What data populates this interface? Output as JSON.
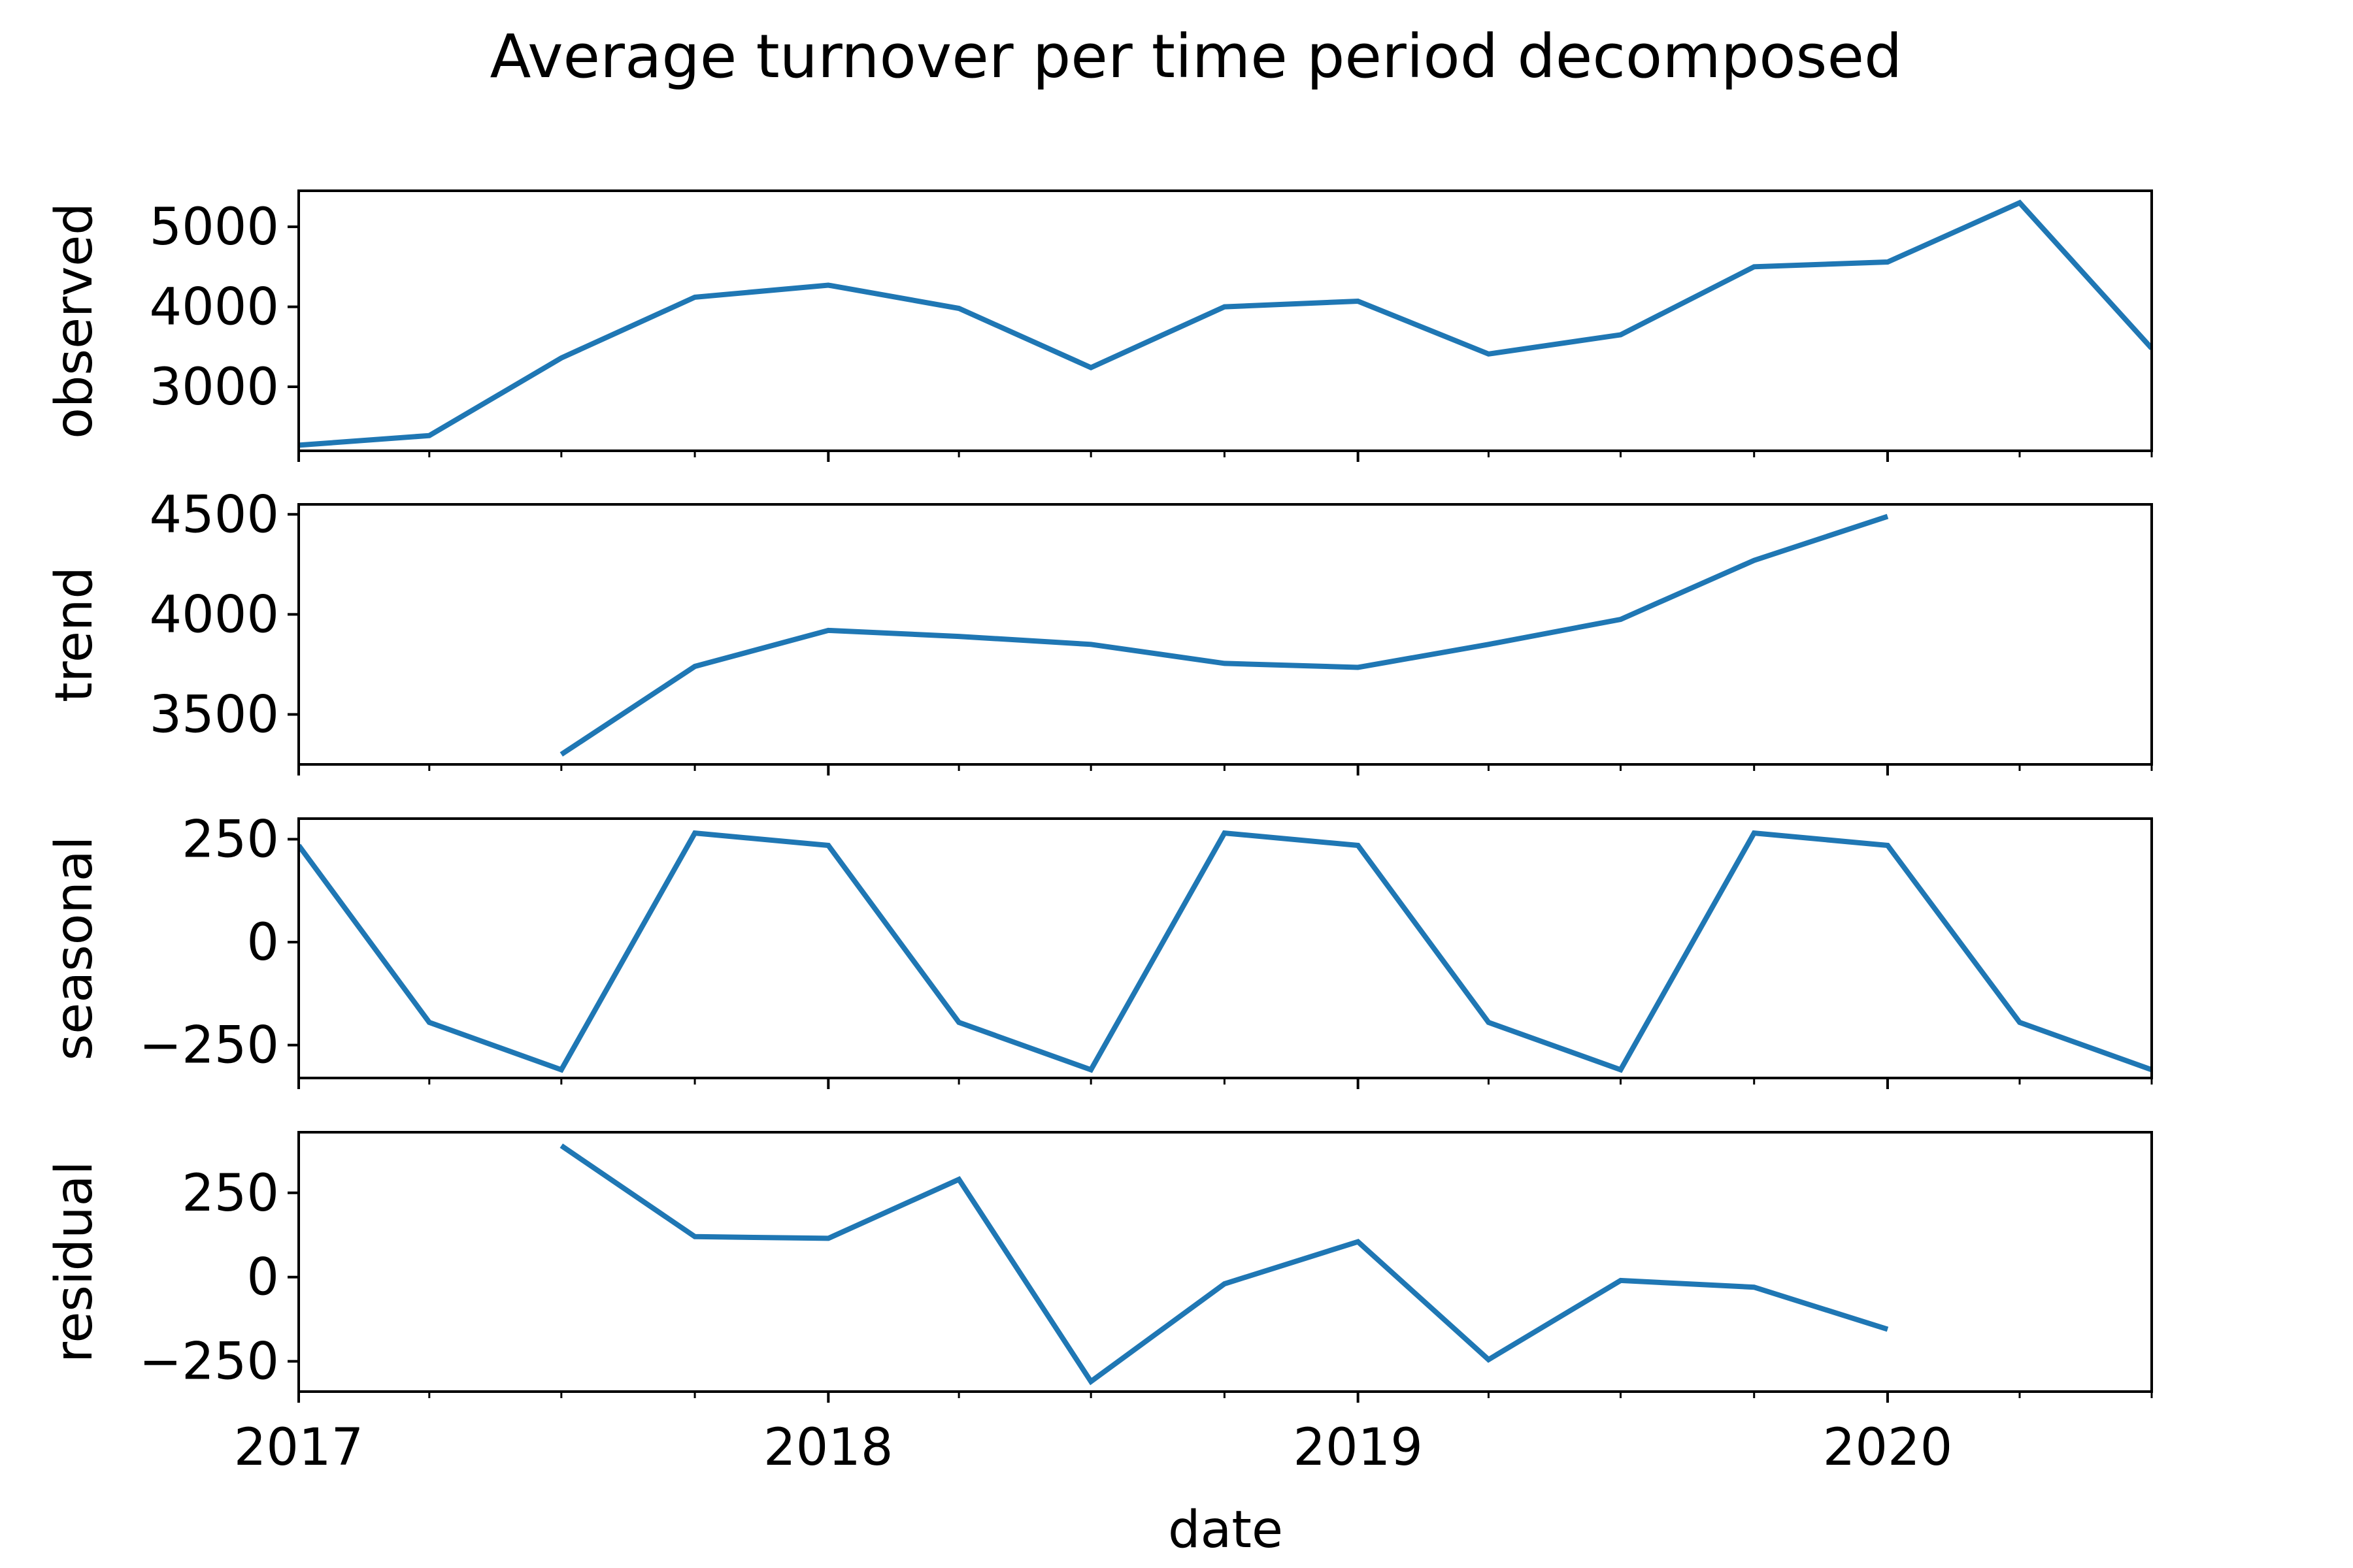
{
  "chart_data": {
    "type": "line",
    "title": "Average turnover per time period decomposed",
    "xlabel": "date",
    "x": [
      "2017-01-01",
      "2017-04-01",
      "2017-07-01",
      "2017-10-01",
      "2018-01-01",
      "2018-04-01",
      "2018-07-01",
      "2018-10-01",
      "2019-01-01",
      "2019-04-01",
      "2019-07-01",
      "2019-10-01",
      "2020-01-01",
      "2020-04-01",
      "2020-07-01"
    ],
    "xlim": [
      "2017-01-01",
      "2020-07-01"
    ],
    "x_ticks": [
      {
        "value": "2017-01-01",
        "label": "2017"
      },
      {
        "value": "2018-01-01",
        "label": "2018"
      },
      {
        "value": "2019-01-01",
        "label": "2019"
      },
      {
        "value": "2020-01-01",
        "label": "2020"
      }
    ],
    "x_minor_ticks": [
      "2017-04-01",
      "2017-07-01",
      "2017-10-01",
      "2018-04-01",
      "2018-07-01",
      "2018-10-01",
      "2019-04-01",
      "2019-07-01",
      "2019-10-01",
      "2020-04-01",
      "2020-07-01"
    ],
    "line_color": "#1f77b4",
    "grid": false,
    "panels": [
      {
        "ylabel": "observed",
        "ylim": [
          2200,
          5450
        ],
        "yticks": [
          {
            "value": 3000,
            "label": "3000"
          },
          {
            "value": 4000,
            "label": "4000"
          },
          {
            "value": 5000,
            "label": "5000"
          }
        ],
        "values": [
          2270,
          2390,
          3360,
          4120,
          4270,
          3980,
          3240,
          4000,
          4070,
          3410,
          3650,
          4500,
          4560,
          5300,
          3480
        ]
      },
      {
        "ylabel": "trend",
        "ylim": [
          3250,
          4550
        ],
        "yticks": [
          {
            "value": 3500,
            "label": "3500"
          },
          {
            "value": 4000,
            "label": "4000"
          },
          {
            "value": 4500,
            "label": "4500"
          }
        ],
        "values": [
          null,
          null,
          3300,
          3740,
          3920,
          3890,
          3850,
          3755,
          3735,
          3850,
          3975,
          4270,
          4490,
          null,
          null
        ]
      },
      {
        "ylabel": "seasonal",
        "ylim": [
          -330,
          300
        ],
        "yticks": [
          {
            "value": -250,
            "label": "−250"
          },
          {
            "value": 0,
            "label": "0"
          },
          {
            "value": 250,
            "label": "250"
          }
        ],
        "values": [
          235,
          -195,
          -310,
          265,
          235,
          -195,
          -310,
          265,
          235,
          -195,
          -310,
          265,
          235,
          -195,
          -310
        ]
      },
      {
        "ylabel": "residual",
        "ylim": [
          -340,
          430
        ],
        "yticks": [
          {
            "value": -250,
            "label": "−250"
          },
          {
            "value": 0,
            "label": "0"
          },
          {
            "value": 250,
            "label": "250"
          }
        ],
        "values": [
          null,
          null,
          390,
          120,
          115,
          290,
          -310,
          -20,
          105,
          -245,
          -10,
          -30,
          -155,
          null,
          null
        ]
      }
    ]
  }
}
